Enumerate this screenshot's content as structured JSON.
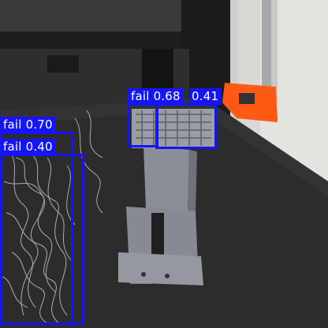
{
  "detections": [
    {
      "label": "fail",
      "confidence": "0.68"
    },
    {
      "label": "fail",
      "confidence": "0.41"
    },
    {
      "label": "fail",
      "confidence": "0.70"
    },
    {
      "label": "fail",
      "confidence": "0.40"
    }
  ],
  "colors": {
    "box": "#1414ff",
    "label_text": "#ffffff",
    "wall": "#dcdcd6",
    "bed": "#2b2b2b",
    "frame": "#1c1c1c",
    "bracket": "#ff5a14",
    "print": "#8e9098"
  }
}
